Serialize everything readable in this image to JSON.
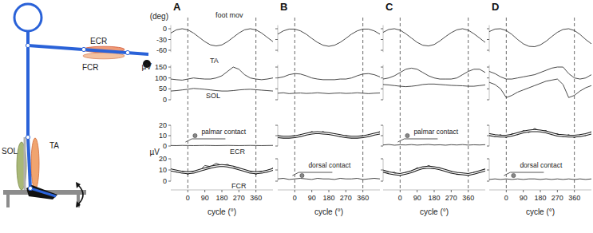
{
  "diagram": {
    "labels": [
      "ECR",
      "FCR",
      "SOL",
      "TA"
    ]
  },
  "chart_data": [
    {
      "type": "line",
      "title": "A",
      "color": "#1a1a1a",
      "x": [
        -90,
        -60,
        -30,
        0,
        30,
        60,
        90,
        120,
        150,
        180,
        210,
        240,
        270,
        300,
        330,
        360,
        390,
        420,
        450
      ],
      "xlim": [
        -90,
        450
      ],
      "xticks": [
        0,
        90,
        180,
        270,
        360
      ],
      "x_label": "cycle (°)",
      "vlines": [
        0,
        360
      ],
      "plots": [
        {
          "y_label": "(deg)",
          "ylim": [
            -65,
            10
          ],
          "yticks": [
            0,
            -30,
            -60
          ],
          "series": [
            {
              "name": "foot mov",
              "values": [
                -12,
                -3,
                0,
                -3,
                -12,
                -24,
                -36,
                -45,
                -48,
                -45,
                -36,
                -24,
                -12,
                -3,
                0,
                -3,
                -12,
                -24,
                -36
              ]
            }
          ]
        },
        {
          "y_label": "µV",
          "ylim": [
            0,
            160
          ],
          "yticks": [
            0,
            50,
            100,
            150
          ],
          "series": [
            {
              "name": "TA",
              "values": [
                95,
                92,
                90,
                95,
                100,
                97,
                95,
                95,
                100,
                110,
                130,
                150,
                140,
                115,
                100,
                95,
                92,
                95,
                100
              ]
            },
            {
              "name": "SOL",
              "values": [
                40,
                42,
                45,
                48,
                52,
                50,
                48,
                45,
                42,
                40,
                40,
                42,
                45,
                47,
                48,
                46,
                44,
                42,
                40
              ]
            }
          ]
        },
        {
          "y_label": "µV",
          "ylim": [
            0,
            20
          ],
          "yticks": [
            0,
            10,
            20
          ],
          "annotation": "palmar contact",
          "series": [
            {
              "name": "ECR",
              "values": [
                0.5,
                0.4,
                0.6,
                0.5,
                0.4,
                0.5,
                0.6,
                0.5,
                0.4,
                0.5,
                0.6,
                0.5,
                0.4,
                0.5,
                0.6,
                0.5,
                0.4,
                0.5,
                0.6
              ]
            }
          ]
        },
        {
          "ylim": [
            0,
            20
          ],
          "yticks": [
            0,
            10,
            20
          ],
          "series": [
            {
              "name": "FCR",
              "values": [
                11,
                8,
                9,
                6,
                9,
                9,
                14,
                13,
                16,
                14,
                15,
                12,
                12,
                9,
                9,
                6,
                9,
                8,
                12
              ]
            },
            {
              "line_style": "outlined",
              "values": [
                10,
                9,
                8,
                7.5,
                8,
                9.5,
                11,
                12.5,
                13.5,
                14,
                13.5,
                12.5,
                11,
                9.5,
                8,
                7.5,
                8,
                9,
                10.5
              ]
            }
          ]
        }
      ]
    },
    {
      "type": "line",
      "title": "B",
      "color": "#1a1a1a",
      "tick_labels": "x",
      "x": [
        -90,
        -60,
        -30,
        0,
        30,
        60,
        90,
        120,
        150,
        180,
        210,
        240,
        270,
        300,
        330,
        360,
        390,
        420,
        450
      ],
      "xlim": [
        -90,
        450
      ],
      "xticks": [
        0,
        90,
        180,
        270,
        360
      ],
      "x_label": "cycle (°)",
      "vlines": [
        0,
        360
      ],
      "plots": [
        {
          "ylim": [
            -65,
            10
          ],
          "yticks": [
            0,
            -30,
            -60
          ],
          "series": [
            {
              "values": [
                -15,
                -6,
                -1,
                -1,
                -6,
                -15,
                -27,
                -38,
                -46,
                -49,
                -46,
                -38,
                -27,
                -15,
                -6,
                -1,
                -1,
                -6,
                -15
              ]
            }
          ]
        },
        {
          "ylim": [
            0,
            160
          ],
          "yticks": [
            0,
            50,
            100,
            150
          ],
          "series": [
            {
              "values": [
                100,
                105,
                115,
                120,
                118,
                110,
                100,
                95,
                92,
                92,
                92,
                95,
                95,
                100,
                110,
                118,
                120,
                115,
                105
              ]
            },
            {
              "values": [
                30,
                32,
                28,
                30,
                31,
                29,
                30,
                32,
                30,
                28,
                30,
                31,
                29,
                30,
                32,
                30,
                28,
                30,
                31
              ]
            }
          ]
        },
        {
          "ylim": [
            0,
            20
          ],
          "yticks": [
            0,
            10,
            20
          ],
          "series": [
            {
              "values": [
                10,
                8,
                9,
                8,
                11,
                11,
                14,
                12,
                14,
                11,
                12,
                9,
                10,
                8,
                9,
                8,
                11,
                11,
                14
              ]
            },
            {
              "line_style": "outlined",
              "values": [
                9,
                8.5,
                8.5,
                9,
                10,
                11.5,
                12.5,
                13,
                12.5,
                12,
                11,
                10,
                9,
                8.5,
                8.5,
                9,
                10,
                11.5,
                12.5
              ]
            }
          ]
        },
        {
          "ylim": [
            0,
            20
          ],
          "yticks": [
            0,
            10,
            20
          ],
          "annotation": "dorsal contact",
          "series": [
            {
              "values": [
                2,
                2.5,
                1.5,
                2,
                2.5,
                2,
                1.5,
                2.5,
                2,
                2,
                1.5,
                2.5,
                2,
                2,
                2.5,
                1.5,
                2,
                2.5,
                2
              ]
            }
          ]
        }
      ]
    },
    {
      "type": "line",
      "title": "C",
      "color": "#1a1a1a",
      "tick_labels": "x",
      "x": [
        -90,
        -60,
        -30,
        0,
        30,
        60,
        90,
        120,
        150,
        180,
        210,
        240,
        270,
        300,
        330,
        360,
        390,
        420,
        450
      ],
      "xlim": [
        -90,
        450
      ],
      "xticks": [
        0,
        90,
        180,
        270,
        360
      ],
      "x_label": "cycle (°)",
      "vlines": [
        0,
        360
      ],
      "plots": [
        {
          "ylim": [
            -65,
            10
          ],
          "yticks": [
            0,
            -30,
            -60
          ],
          "series": [
            {
              "values": [
                -10,
                -2,
                0,
                -4,
                -14,
                -26,
                -38,
                -46,
                -48,
                -44,
                -34,
                -22,
                -11,
                -3,
                0,
                -4,
                -14,
                -26,
                -38
              ]
            }
          ]
        },
        {
          "ylim": [
            0,
            160
          ],
          "yticks": [
            0,
            50,
            100,
            150
          ],
          "series": [
            {
              "values": [
                95,
                100,
                110,
                125,
                140,
                145,
                140,
                125,
                110,
                100,
                95,
                95,
                95,
                100,
                115,
                130,
                140,
                140,
                125
              ]
            },
            {
              "values": [
                70,
                68,
                65,
                62,
                60,
                62,
                65,
                70,
                72,
                72,
                70,
                68,
                66,
                65,
                64,
                62,
                62,
                65,
                68
              ]
            }
          ]
        },
        {
          "ylim": [
            0,
            20
          ],
          "yticks": [
            0,
            10,
            20
          ],
          "annotation": "palmar contact",
          "series": [
            {
              "values": [
                1,
                1.5,
                0.8,
                1.2,
                1,
                1.4,
                0.9,
                1.2,
                1.5,
                1,
                1.2,
                0.8,
                1.3,
                1,
                1.4,
                0.9,
                1.2,
                1,
                1.3
              ]
            }
          ]
        },
        {
          "ylim": [
            0,
            20
          ],
          "yticks": [
            0,
            10,
            20
          ],
          "series": [
            {
              "values": [
                10,
                7,
                8,
                5,
                8,
                8,
                12,
                11,
                14,
                12,
                12,
                9,
                9,
                6,
                7,
                5,
                8,
                8,
                11
              ]
            },
            {
              "line_style": "outlined",
              "values": [
                9,
                7.5,
                6.5,
                6,
                7,
                8.5,
                10.5,
                12,
                12.5,
                12,
                11,
                9.5,
                8,
                7,
                6.5,
                6,
                7,
                8.5,
                10
              ]
            }
          ]
        }
      ]
    },
    {
      "type": "line",
      "title": "D",
      "color": "#1a1a1a",
      "tick_labels": "x",
      "x": [
        -90,
        -60,
        -30,
        0,
        30,
        60,
        90,
        120,
        150,
        180,
        210,
        240,
        270,
        300,
        330,
        360,
        390,
        420,
        450
      ],
      "xlim": [
        -90,
        450
      ],
      "xticks": [
        0,
        90,
        180,
        270,
        360
      ],
      "x_label": "cycle (°)",
      "vlines": [
        0,
        360
      ],
      "plots": [
        {
          "ylim": [
            -65,
            10
          ],
          "yticks": [
            0,
            -30,
            -60
          ],
          "series": [
            {
              "values": [
                -8,
                -1,
                0,
                -5,
                -16,
                -30,
                -42,
                -49,
                -50,
                -45,
                -35,
                -22,
                -10,
                -2,
                0,
                -5,
                -16,
                -30,
                -42
              ]
            }
          ]
        },
        {
          "ylim": [
            0,
            160
          ],
          "yticks": [
            0,
            50,
            100,
            150
          ],
          "series": [
            {
              "values": [
                130,
                120,
                105,
                95,
                95,
                100,
                105,
                110,
                115,
                125,
                135,
                145,
                150,
                150,
                120,
                100,
                95,
                100,
                115
              ]
            },
            {
              "values": [
                80,
                70,
                50,
                10,
                20,
                35,
                45,
                55,
                65,
                75,
                85,
                90,
                95,
                70,
                10,
                20,
                40,
                55,
                65
              ]
            }
          ]
        },
        {
          "ylim": [
            0,
            20
          ],
          "yticks": [
            0,
            10,
            20
          ],
          "series": [
            {
              "values": [
                12,
                9,
                11,
                8,
                12,
                11,
                15,
                13,
                17,
                14,
                15,
                11,
                12,
                9,
                11,
                8,
                11,
                10,
                14
              ]
            },
            {
              "line_style": "outlined",
              "values": [
                11,
                10,
                9.5,
                9.5,
                10.5,
                12,
                13.5,
                14.5,
                15,
                14.5,
                13.5,
                12,
                10.5,
                10,
                9.5,
                9.5,
                10,
                11,
                12.5
              ]
            }
          ]
        },
        {
          "ylim": [
            0,
            20
          ],
          "yticks": [
            0,
            10,
            20
          ],
          "annotation": "dorsal contact",
          "series": [
            {
              "values": [
                1.5,
                2,
                1.5,
                2,
                1.5,
                2,
                1.5,
                2,
                2,
                1.5,
                2,
                1.5,
                2,
                1.5,
                2,
                1.5,
                2,
                1.5,
                2
              ]
            }
          ]
        }
      ]
    }
  ]
}
